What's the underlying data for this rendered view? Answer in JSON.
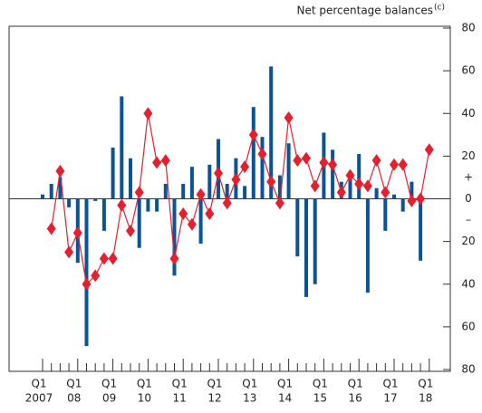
{
  "chart_data": {
    "type": "bar-line",
    "axis_label": "Net percentage balances",
    "axis_label_superscript": "(c)",
    "categories": [
      "Q1",
      null,
      null,
      null,
      "Q1",
      null,
      null,
      null,
      "Q1",
      null,
      null,
      null,
      "Q1",
      null,
      null,
      null,
      "Q1",
      null,
      null,
      null,
      "Q1",
      null,
      null,
      null,
      "Q1",
      null,
      null,
      null,
      "Q1",
      null,
      null,
      null,
      "Q1",
      null,
      null,
      null,
      "Q1",
      null,
      null,
      null,
      "Q1",
      null,
      null,
      null,
      "Q1"
    ],
    "years": [
      "2007",
      "08",
      "09",
      "10",
      "11",
      "12",
      "13",
      "14",
      "15",
      "16",
      "17",
      "18"
    ],
    "series": [
      {
        "kind": "bar",
        "color": "#0b5394",
        "values": [
          2,
          7,
          10,
          -4,
          -30,
          -69,
          -1,
          -15,
          24,
          48,
          19,
          -23,
          -6,
          -6,
          7,
          -36,
          7,
          15,
          -21,
          16,
          28,
          7,
          19,
          6,
          43,
          29,
          62,
          11,
          26,
          -27,
          -46,
          -40,
          31,
          23,
          8,
          13,
          21,
          -44,
          5,
          -15,
          2,
          -6,
          8,
          -29,
          null
        ]
      },
      {
        "kind": "line",
        "color": "#e4202e",
        "values": [
          null,
          -14,
          13,
          -25,
          -16,
          -40,
          -36,
          -28,
          -28,
          -3,
          -15,
          3,
          40,
          17,
          18,
          -28,
          -7,
          -12,
          2,
          -7,
          12,
          -2,
          9,
          15,
          30,
          21,
          8,
          -2,
          38,
          18,
          19,
          6,
          17,
          16,
          3,
          11,
          7,
          6,
          18,
          3,
          16,
          16,
          -1,
          0,
          23
        ]
      }
    ],
    "ylim": [
      -80,
      80
    ],
    "yticks": [
      80,
      60,
      40,
      20,
      0,
      {
        "value": -20,
        "label": "20"
      },
      {
        "value": -40,
        "label": "40"
      },
      {
        "value": -60,
        "label": "60"
      },
      {
        "value": -80,
        "label": "80"
      }
    ],
    "annotations": [
      {
        "text": "+",
        "y": 10
      },
      {
        "text": "–",
        "y": -10
      }
    ]
  }
}
